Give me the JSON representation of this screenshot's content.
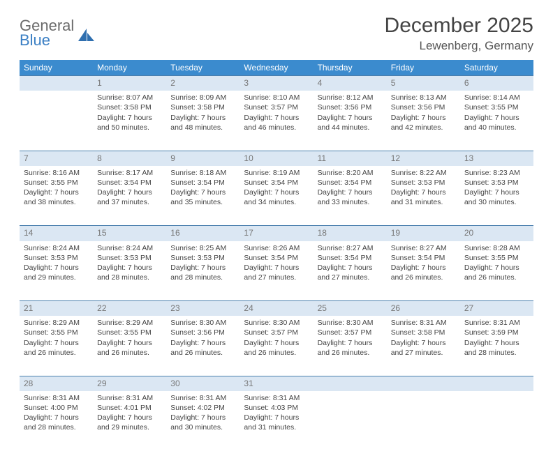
{
  "brand": {
    "general": "General",
    "blue": "Blue"
  },
  "title": "December 2025",
  "location": "Lewenberg, Germany",
  "colors": {
    "header_bg": "#3b8bce",
    "header_text": "#ffffff",
    "daynum_bg": "#dbe7f3",
    "border": "#4a7fae",
    "text": "#444444",
    "daynum_text": "#777777",
    "logo_gray": "#6b6b6b",
    "logo_blue": "#3b7fc4"
  },
  "weekdays": [
    "Sunday",
    "Monday",
    "Tuesday",
    "Wednesday",
    "Thursday",
    "Friday",
    "Saturday"
  ],
  "weeks": [
    [
      {},
      {
        "n": "1",
        "sr": "8:07 AM",
        "ss": "3:58 PM",
        "dl": "7 hours and 50 minutes."
      },
      {
        "n": "2",
        "sr": "8:09 AM",
        "ss": "3:58 PM",
        "dl": "7 hours and 48 minutes."
      },
      {
        "n": "3",
        "sr": "8:10 AM",
        "ss": "3:57 PM",
        "dl": "7 hours and 46 minutes."
      },
      {
        "n": "4",
        "sr": "8:12 AM",
        "ss": "3:56 PM",
        "dl": "7 hours and 44 minutes."
      },
      {
        "n": "5",
        "sr": "8:13 AM",
        "ss": "3:56 PM",
        "dl": "7 hours and 42 minutes."
      },
      {
        "n": "6",
        "sr": "8:14 AM",
        "ss": "3:55 PM",
        "dl": "7 hours and 40 minutes."
      }
    ],
    [
      {
        "n": "7",
        "sr": "8:16 AM",
        "ss": "3:55 PM",
        "dl": "7 hours and 38 minutes."
      },
      {
        "n": "8",
        "sr": "8:17 AM",
        "ss": "3:54 PM",
        "dl": "7 hours and 37 minutes."
      },
      {
        "n": "9",
        "sr": "8:18 AM",
        "ss": "3:54 PM",
        "dl": "7 hours and 35 minutes."
      },
      {
        "n": "10",
        "sr": "8:19 AM",
        "ss": "3:54 PM",
        "dl": "7 hours and 34 minutes."
      },
      {
        "n": "11",
        "sr": "8:20 AM",
        "ss": "3:54 PM",
        "dl": "7 hours and 33 minutes."
      },
      {
        "n": "12",
        "sr": "8:22 AM",
        "ss": "3:53 PM",
        "dl": "7 hours and 31 minutes."
      },
      {
        "n": "13",
        "sr": "8:23 AM",
        "ss": "3:53 PM",
        "dl": "7 hours and 30 minutes."
      }
    ],
    [
      {
        "n": "14",
        "sr": "8:24 AM",
        "ss": "3:53 PM",
        "dl": "7 hours and 29 minutes."
      },
      {
        "n": "15",
        "sr": "8:24 AM",
        "ss": "3:53 PM",
        "dl": "7 hours and 28 minutes."
      },
      {
        "n": "16",
        "sr": "8:25 AM",
        "ss": "3:53 PM",
        "dl": "7 hours and 28 minutes."
      },
      {
        "n": "17",
        "sr": "8:26 AM",
        "ss": "3:54 PM",
        "dl": "7 hours and 27 minutes."
      },
      {
        "n": "18",
        "sr": "8:27 AM",
        "ss": "3:54 PM",
        "dl": "7 hours and 27 minutes."
      },
      {
        "n": "19",
        "sr": "8:27 AM",
        "ss": "3:54 PM",
        "dl": "7 hours and 26 minutes."
      },
      {
        "n": "20",
        "sr": "8:28 AM",
        "ss": "3:55 PM",
        "dl": "7 hours and 26 minutes."
      }
    ],
    [
      {
        "n": "21",
        "sr": "8:29 AM",
        "ss": "3:55 PM",
        "dl": "7 hours and 26 minutes."
      },
      {
        "n": "22",
        "sr": "8:29 AM",
        "ss": "3:55 PM",
        "dl": "7 hours and 26 minutes."
      },
      {
        "n": "23",
        "sr": "8:30 AM",
        "ss": "3:56 PM",
        "dl": "7 hours and 26 minutes."
      },
      {
        "n": "24",
        "sr": "8:30 AM",
        "ss": "3:57 PM",
        "dl": "7 hours and 26 minutes."
      },
      {
        "n": "25",
        "sr": "8:30 AM",
        "ss": "3:57 PM",
        "dl": "7 hours and 26 minutes."
      },
      {
        "n": "26",
        "sr": "8:31 AM",
        "ss": "3:58 PM",
        "dl": "7 hours and 27 minutes."
      },
      {
        "n": "27",
        "sr": "8:31 AM",
        "ss": "3:59 PM",
        "dl": "7 hours and 28 minutes."
      }
    ],
    [
      {
        "n": "28",
        "sr": "8:31 AM",
        "ss": "4:00 PM",
        "dl": "7 hours and 28 minutes."
      },
      {
        "n": "29",
        "sr": "8:31 AM",
        "ss": "4:01 PM",
        "dl": "7 hours and 29 minutes."
      },
      {
        "n": "30",
        "sr": "8:31 AM",
        "ss": "4:02 PM",
        "dl": "7 hours and 30 minutes."
      },
      {
        "n": "31",
        "sr": "8:31 AM",
        "ss": "4:03 PM",
        "dl": "7 hours and 31 minutes."
      },
      {},
      {},
      {}
    ]
  ],
  "labels": {
    "sunrise": "Sunrise:",
    "sunset": "Sunset:",
    "daylight": "Daylight:"
  }
}
